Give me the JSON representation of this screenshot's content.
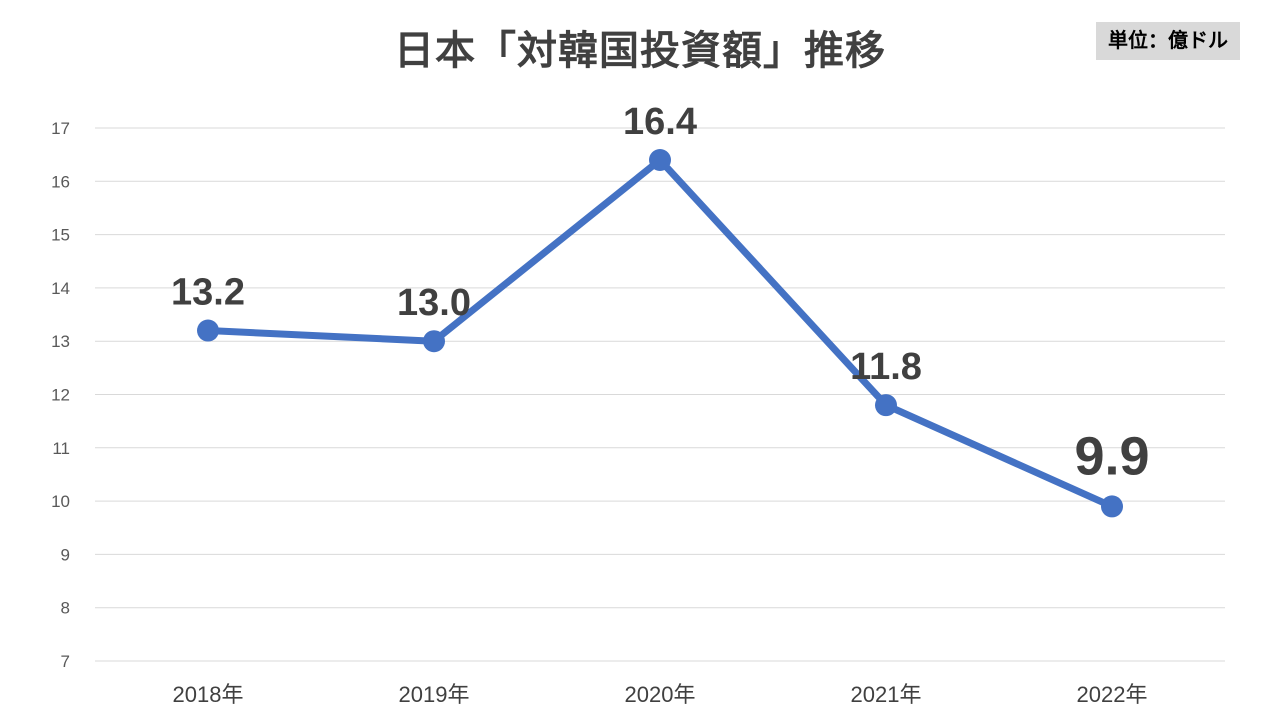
{
  "chart_data": {
    "type": "line",
    "title": "日本「対韓国投資額」推移",
    "unit_label": "単位：億ドル",
    "categories": [
      "2018年",
      "2019年",
      "2020年",
      "2021年",
      "2022年"
    ],
    "series": [
      {
        "values": [
          13.2,
          13.0,
          16.4,
          11.8,
          9.9
        ],
        "data_labels": [
          "13.2",
          "13.0",
          "16.4",
          "11.8",
          "9.9"
        ],
        "color": "#4472c4"
      }
    ],
    "highlight": {
      "index": 4,
      "color": "#ff0000"
    },
    "ylim": [
      7,
      17
    ],
    "yticks": [
      "7",
      "8",
      "9",
      "10",
      "11",
      "12",
      "13",
      "14",
      "15",
      "16",
      "17"
    ],
    "xlabel": "",
    "ylabel": "",
    "grid": true,
    "legend": "none"
  },
  "colors": {
    "line": "#4472c4",
    "highlight_label": "#ff0000",
    "label_text": "#404040",
    "gridline": "#d9d9d9",
    "unit_badge_bg": "#d9d9d9"
  }
}
